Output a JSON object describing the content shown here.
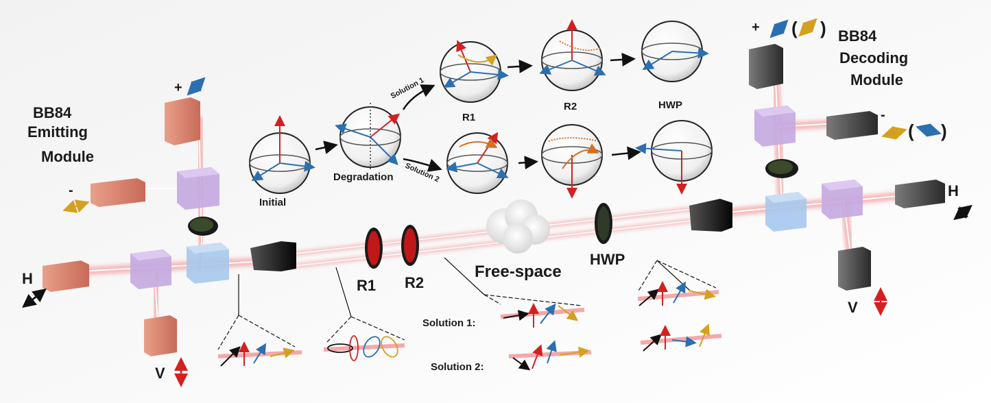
{
  "emitting_module": {
    "line1": "BB84",
    "line2": "Emitting",
    "line3": "Module"
  },
  "decoding_module": {
    "line1": "BB84",
    "line2": "Decoding",
    "line3": "Module"
  },
  "sphere_labels": {
    "initial": "Initial",
    "degradation": "Degradation",
    "r1": "R1",
    "r2": "R2",
    "hwp": "HWP",
    "solution1": "Solution 1",
    "solution2": "Solution 2"
  },
  "components": {
    "r1": "R1",
    "r2": "R2",
    "free_space": "Free-space",
    "hwp": "HWP"
  },
  "emitter_ports": {
    "plus": "+",
    "minus": "-",
    "h": "H",
    "v": "V"
  },
  "decoder_ports": {
    "plus": "+",
    "minus": "-",
    "h": "H",
    "v": "V",
    "paren_open": "(",
    "paren_close": ")"
  },
  "solution_labels": {
    "solution1": "Solution 1:",
    "solution2": "Solution 2:"
  },
  "colors": {
    "background": "#ffffff",
    "beam": "#f2a0a0",
    "red_arrow": "#d42020",
    "blue_arrow": "#2a6fb0",
    "gold_arrow": "#d4a020",
    "black_arrow": "#111111",
    "emitter_laser": "#e09080",
    "decoder_detector": "#5a5a5a",
    "pbs_blue": "#8fb8e0",
    "pbs_purple": "#b090d0",
    "waveplate_red": "#c01818"
  }
}
